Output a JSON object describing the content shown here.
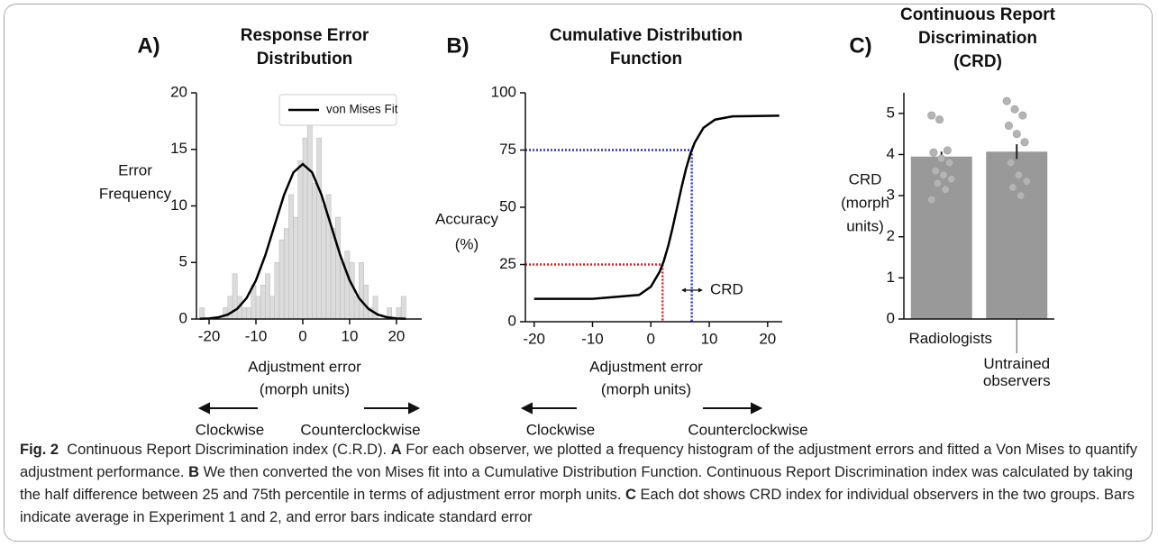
{
  "chart_data": [
    {
      "type": "histogram",
      "panel": "A)",
      "title": [
        "Response Error",
        "Distribution"
      ],
      "ylabel": [
        "Error",
        "Frequency"
      ],
      "xlabel": [
        "Adjustment error",
        "(morph units)"
      ],
      "annotations": [
        "Clockwise",
        "Counterclockwise"
      ],
      "bins": [
        -22,
        -21,
        -20,
        -19,
        -18,
        -17,
        -16,
        -15,
        -14,
        -13,
        -12,
        -11,
        -10,
        -9,
        -8,
        -7,
        -6,
        -5,
        -4,
        -3,
        -2,
        -1,
        0,
        1,
        2,
        3,
        4,
        5,
        6,
        7,
        8,
        9,
        10,
        11,
        12,
        13,
        14,
        15,
        16,
        17,
        18,
        19,
        20,
        21,
        22
      ],
      "counts": [
        1,
        0,
        0,
        0,
        0,
        1,
        2,
        4,
        2,
        1,
        1,
        3,
        2,
        3,
        4,
        2,
        5,
        7,
        8,
        11,
        9,
        14,
        16,
        18,
        12,
        16,
        10,
        11,
        8,
        9,
        5,
        6,
        5,
        2,
        5,
        3,
        1,
        2,
        0,
        0,
        1,
        0,
        1,
        2
      ],
      "color": "#dcdcdc",
      "series": [
        {
          "name": "von Mises Fit",
          "color": "#000000",
          "x": [
            -22,
            -20,
            -18,
            -16,
            -14,
            -12,
            -10,
            -8,
            -6,
            -4,
            -2,
            0,
            2,
            4,
            6,
            8,
            10,
            12,
            14,
            16,
            18,
            20,
            22
          ],
          "values": [
            0.02,
            0.05,
            0.15,
            0.39,
            0.9,
            1.85,
            3.42,
            5.63,
            8.31,
            10.97,
            12.96,
            13.7,
            12.96,
            10.97,
            8.31,
            5.63,
            3.42,
            1.85,
            0.9,
            0.39,
            0.15,
            0.05,
            0.02
          ]
        }
      ],
      "legend": "upper right",
      "xlim": [
        -22.7,
        25.4
      ],
      "xticks": [
        -20,
        -10,
        0,
        10,
        20
      ],
      "ylim": [
        0,
        20
      ],
      "yticks": [
        0,
        5,
        10,
        15,
        20
      ]
    },
    {
      "type": "line",
      "panel": "B)",
      "title": [
        "Cumulative Distribution",
        "Function"
      ],
      "ylabel": [
        "Accuracy",
        "(%)"
      ],
      "xlabel": [
        "Adjustment error",
        "(morph units)"
      ],
      "annotations": [
        "Clockwise",
        "Counterclockwise",
        "CRD"
      ],
      "series": [
        {
          "color": "#000000",
          "x": [
            -20,
            -10,
            -2,
            0,
            1.5,
            2.2,
            3,
            3.7,
            4.5,
            5.3,
            6,
            6.8,
            7.5,
            9,
            11,
            14,
            22
          ],
          "values": [
            10,
            10,
            11.7,
            15.3,
            21.8,
            26.4,
            33.4,
            40.8,
            50,
            59.2,
            66.6,
            73.6,
            78.2,
            84.7,
            88.3,
            89.7,
            90
          ]
        }
      ],
      "reference_lines": [
        {
          "x": 7,
          "y": 75,
          "color": "#2a34c8"
        },
        {
          "x": 2,
          "y": 25,
          "color": "#e02020"
        }
      ],
      "xlim": [
        -21.5,
        22.5
      ],
      "xticks": [
        -20,
        -10,
        0,
        10,
        20
      ],
      "ylim": [
        0,
        100
      ],
      "yticks": [
        0,
        25,
        50,
        75,
        100
      ]
    },
    {
      "type": "bar",
      "panel": "C)",
      "title": [
        "Continuous Report",
        "Discrimination",
        "(CRD)"
      ],
      "ylabel": [
        "CRD",
        "(morph",
        "units)"
      ],
      "categories": [
        "Radiologists",
        "Untrained observers"
      ],
      "values": [
        3.95,
        4.07
      ],
      "errors": [
        0.12,
        0.18
      ],
      "color": "#999999",
      "points": [
        [
          4.95,
          4.85,
          4.1,
          4.05,
          3.9,
          3.8,
          3.6,
          3.5,
          3.4,
          3.3,
          3.15,
          2.9
        ],
        [
          5.3,
          5.1,
          4.95,
          4.7,
          4.5,
          4.3,
          3.8,
          3.5,
          3.35,
          3.2,
          3.0
        ]
      ],
      "point_color": "#b4b4b4",
      "ylim": [
        0,
        5.5
      ],
      "yticks": [
        0,
        1,
        2,
        3,
        4,
        5
      ]
    }
  ],
  "caption": {
    "label": "Fig. 2",
    "intro": "Continuous Report Discrimination index (C.R.D).",
    "parts": [
      {
        "letter": "A",
        "text": "For each observer, we plotted a frequency histogram of the adjustment errors and fitted a Von Mises to quantify adjustment performance."
      },
      {
        "letter": "B",
        "text": "We then converted the von Mises fit into a Cumulative Distribution Function. Continuous Report Discrimination index was calculated by taking the half difference between 25 and 75th percentile in terms of adjustment error morph units."
      },
      {
        "letter": "C",
        "text": "Each dot shows CRD index for individual observers in the two groups. Bars indicate average in Experiment 1 and 2, and error bars indicate standard error"
      }
    ]
  }
}
